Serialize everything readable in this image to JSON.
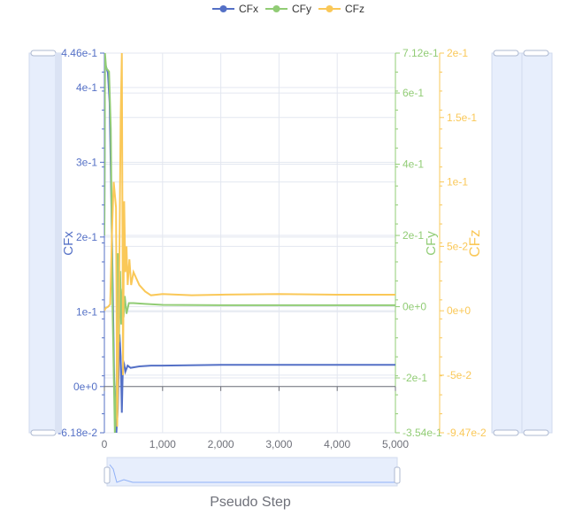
{
  "chart_data": {
    "type": "line",
    "xlabel": "Pseudo Step",
    "xlim": [
      0,
      5000
    ],
    "xticks": [
      "0",
      "1,000",
      "2,000",
      "3,000",
      "4,000",
      "5,000"
    ],
    "xtick_values": [
      0,
      1000,
      2000,
      3000,
      4000,
      5000
    ],
    "legend_position": "top",
    "grid": true,
    "axes": [
      {
        "name": "CFx",
        "label": "CFx",
        "color": "#5470c6",
        "range": [
          -0.0618,
          0.446
        ],
        "tick_labels": [
          "4.46e-1",
          "4e-1",
          "3e-1",
          "2e-1",
          "1e-1",
          "0e+0",
          "-6.18e-2"
        ],
        "tick_values": [
          0.446,
          0.4,
          0.3,
          0.2,
          0.1,
          0,
          -0.0618
        ]
      },
      {
        "name": "CFy",
        "label": "CFy",
        "color": "#91cc75",
        "range": [
          -0.354,
          0.712
        ],
        "tick_labels": [
          "7.12e-1",
          "6e-1",
          "4e-1",
          "2e-1",
          "0e+0",
          "-2e-1",
          "-3.54e-1"
        ],
        "tick_values": [
          0.712,
          0.6,
          0.4,
          0.2,
          0,
          -0.2,
          -0.354
        ]
      },
      {
        "name": "CFz",
        "label": "CFz",
        "color": "#fac858",
        "range": [
          -0.0947,
          0.2
        ],
        "tick_labels": [
          "2e-1",
          "1.5e-1",
          "1e-1",
          "5e-2",
          "0e+0",
          "-5e-2",
          "-9.47e-2"
        ],
        "tick_values": [
          0.2,
          0.15,
          0.1,
          0.05,
          0,
          -0.05,
          -0.0947
        ]
      }
    ],
    "series": [
      {
        "name": "CFx",
        "axis": 0,
        "x": [
          0,
          10,
          20,
          60,
          90,
          130,
          170,
          200,
          230,
          260,
          280,
          300,
          320,
          340,
          360,
          400,
          450,
          600,
          800,
          1000,
          2000,
          3000,
          4000,
          5000
        ],
        "y": [
          0.21,
          0.44,
          0.43,
          0.42,
          0.38,
          0.2,
          0.0,
          -0.07,
          -0.03,
          0.07,
          0.04,
          -0.035,
          0.035,
          0.03,
          0.02,
          0.028,
          0.025,
          0.027,
          0.028,
          0.028,
          0.029,
          0.029,
          0.029,
          0.029
        ]
      },
      {
        "name": "CFy",
        "axis": 1,
        "x": [
          0,
          10,
          30,
          80,
          110,
          140,
          180,
          210,
          230,
          250,
          270,
          290,
          310,
          330,
          350,
          380,
          420,
          500,
          700,
          1000,
          2000,
          3000,
          4000,
          5000
        ],
        "y": [
          0.2,
          0.712,
          0.67,
          0.66,
          0.5,
          0.0,
          -0.354,
          -0.2,
          0.15,
          -0.1,
          0.1,
          -0.05,
          0.05,
          -0.03,
          0.03,
          -0.02,
          0.01,
          0.01,
          0.008,
          0.005,
          0.004,
          0.004,
          0.004,
          0.004
        ]
      },
      {
        "name": "CFz",
        "axis": 2,
        "x": [
          0,
          20,
          60,
          100,
          130,
          160,
          200,
          220,
          250,
          280,
          300,
          320,
          340,
          360,
          380,
          400,
          430,
          460,
          500,
          600,
          700,
          800,
          1000,
          1500,
          2000,
          3000,
          4000,
          5000
        ],
        "y": [
          0.0,
          0.002,
          0.003,
          0.005,
          0.06,
          0.1,
          0.08,
          -0.09,
          0.0,
          0.15,
          0.2,
          -0.05,
          0.085,
          0.03,
          0.05,
          0.02,
          0.04,
          0.02,
          0.03,
          0.02,
          0.015,
          0.012,
          0.013,
          0.012,
          0.0125,
          0.013,
          0.0125,
          0.0125
        ]
      }
    ]
  }
}
